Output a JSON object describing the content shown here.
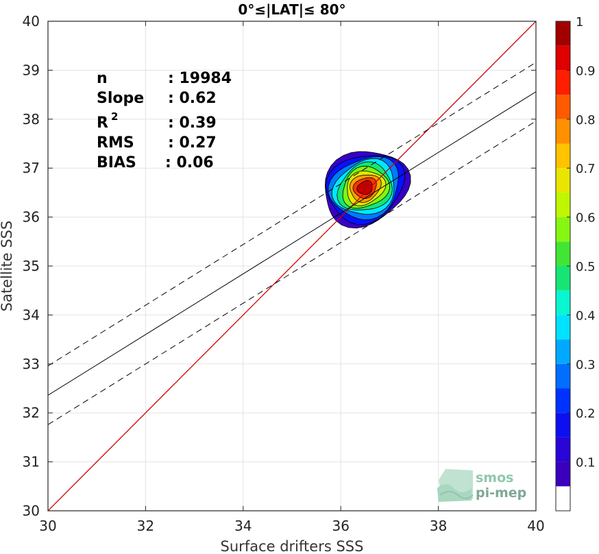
{
  "chart_data": {
    "type": "heatmap",
    "title": "0°≤|LAT|≤ 80°",
    "xlabel": "Surface drifters SSS",
    "ylabel": "Satellite SSS",
    "xlim": [
      30,
      40
    ],
    "ylim": [
      30,
      40
    ],
    "xticks": [
      "30",
      "32",
      "34",
      "36",
      "38",
      "40"
    ],
    "yticks": [
      "30",
      "31",
      "32",
      "33",
      "34",
      "35",
      "36",
      "37",
      "38",
      "39",
      "40"
    ],
    "grid": true,
    "stats": [
      {
        "label": "n",
        "value": ": 19984"
      },
      {
        "label": "Slope",
        "value": ": 0.62"
      },
      {
        "label": "R",
        "sup": "2",
        "value": ": 0.39"
      },
      {
        "label": "RMS",
        "value": ": 0.27"
      },
      {
        "label": "BIAS",
        "value": ": 0.06"
      }
    ],
    "identity_line": {
      "from": [
        30,
        30
      ],
      "to": [
        40,
        40
      ],
      "color": "#cc0000"
    },
    "fit_line": {
      "slope": 0.62,
      "intercept": 13.76
    },
    "fit_band_offset": 0.6,
    "density_peak": {
      "x": 36.5,
      "y": 36.6
    },
    "colorbar": {
      "ticks": [
        "0.1",
        "0.2",
        "0.3",
        "0.4",
        "0.5",
        "0.6",
        "0.7",
        "0.8",
        "0.9",
        "1"
      ],
      "tick_values": [
        0.1,
        0.2,
        0.3,
        0.4,
        0.5,
        0.6,
        0.7,
        0.8,
        0.9,
        1.0
      ],
      "levels": 20,
      "range": [
        0,
        1
      ]
    }
  },
  "logo": {
    "line1": "smos",
    "line2": "pi-mep"
  }
}
